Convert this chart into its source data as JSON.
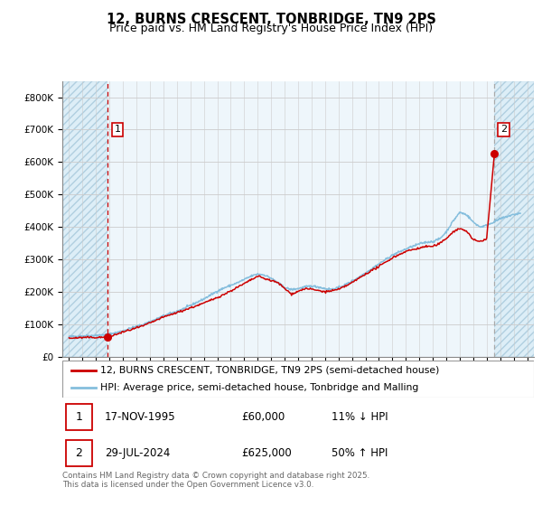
{
  "title": "12, BURNS CRESCENT, TONBRIDGE, TN9 2PS",
  "subtitle": "Price paid vs. HM Land Registry's House Price Index (HPI)",
  "ylim": [
    0,
    850000
  ],
  "yticks": [
    0,
    100000,
    200000,
    300000,
    400000,
    500000,
    600000,
    700000,
    800000
  ],
  "ytick_labels": [
    "£0",
    "£100K",
    "£200K",
    "£300K",
    "£400K",
    "£500K",
    "£600K",
    "£700K",
    "£800K"
  ],
  "xlim_start": 1992.5,
  "xlim_end": 2027.5,
  "xticks": [
    1993,
    1994,
    1995,
    1996,
    1997,
    1998,
    1999,
    2000,
    2001,
    2002,
    2003,
    2004,
    2005,
    2006,
    2007,
    2008,
    2009,
    2010,
    2011,
    2012,
    2013,
    2014,
    2015,
    2016,
    2017,
    2018,
    2019,
    2020,
    2021,
    2022,
    2023,
    2024,
    2025,
    2026,
    2027
  ],
  "sale1_x": 1995.88,
  "sale1_y": 60000,
  "sale1_label": "1",
  "sale2_x": 2024.57,
  "sale2_y": 625000,
  "sale2_label": "2",
  "hpi_color": "#85bedd",
  "sale_color": "#cc0000",
  "dashed_line1_color": "#cc0000",
  "dashed_line2_color": "#aaaaaa",
  "hatch_color": "#c5d8e8",
  "grid_color": "#cccccc",
  "legend_line1": "12, BURNS CRESCENT, TONBRIDGE, TN9 2PS (semi-detached house)",
  "legend_line2": "HPI: Average price, semi-detached house, Tonbridge and Malling",
  "table_row1": [
    "1",
    "17-NOV-1995",
    "£60,000",
    "11% ↓ HPI"
  ],
  "table_row2": [
    "2",
    "29-JUL-2024",
    "£625,000",
    "50% ↑ HPI"
  ],
  "footer": "Contains HM Land Registry data © Crown copyright and database right 2025.\nThis data is licensed under the Open Government Licence v3.0.",
  "title_fontsize": 10.5,
  "subtitle_fontsize": 9,
  "tick_fontsize": 7.5
}
